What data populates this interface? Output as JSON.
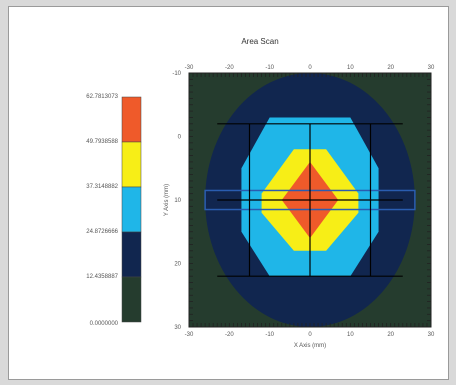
{
  "chart_data": {
    "type": "heatmap",
    "title": "Area Scan",
    "xlabel": "X Axis (mm)",
    "ylabel": "Y Axis (mm)",
    "xlim": [
      -30,
      30
    ],
    "ylim": [
      30,
      -10
    ],
    "x_ticks": [
      "-30",
      "-20",
      "-10",
      "0",
      "10",
      "20",
      "30"
    ],
    "y_ticks": [
      "-10",
      "0",
      "10",
      "20",
      "30"
    ],
    "legend": {
      "levels": [
        "62.7813073",
        "49.7938588",
        "37.3148882",
        "24.8726666",
        "12.4358887",
        "0.0000000"
      ],
      "colors": [
        "#ef5a2a",
        "#f7ee17",
        "#1fb6e8",
        "#11264f",
        "#253c2e"
      ]
    },
    "contours": [
      {
        "level_index": 4,
        "color": "#253c2e",
        "shape": "background"
      },
      {
        "level_index": 3,
        "color": "#11264f",
        "cx": 0,
        "cy": 10,
        "rx": 26,
        "ry": 20
      },
      {
        "level_index": 2,
        "color": "#1fb6e8",
        "points": [
          [
            -10,
            -3
          ],
          [
            10,
            -3
          ],
          [
            17,
            5
          ],
          [
            17,
            15
          ],
          [
            10,
            22
          ],
          [
            -10,
            22
          ],
          [
            -17,
            15
          ],
          [
            -17,
            5
          ]
        ]
      },
      {
        "level_index": 1,
        "color": "#f7ee17",
        "points": [
          [
            -4,
            2
          ],
          [
            4,
            2
          ],
          [
            12,
            9
          ],
          [
            12,
            12
          ],
          [
            4,
            18
          ],
          [
            -4,
            18
          ],
          [
            -12,
            12
          ],
          [
            -12,
            9
          ]
        ]
      },
      {
        "level_index": 0,
        "color": "#ef5a2a",
        "points": [
          [
            0,
            4
          ],
          [
            7,
            10
          ],
          [
            0,
            16
          ],
          [
            -7,
            10
          ]
        ]
      }
    ],
    "grid_x": [
      -15,
      0,
      15
    ],
    "grid_y": [
      -2,
      10,
      22
    ],
    "highlight_band": {
      "y0": 8.5,
      "y1": 11.5,
      "x0": -26,
      "x1": 26,
      "color": "#2a5db0"
    }
  }
}
